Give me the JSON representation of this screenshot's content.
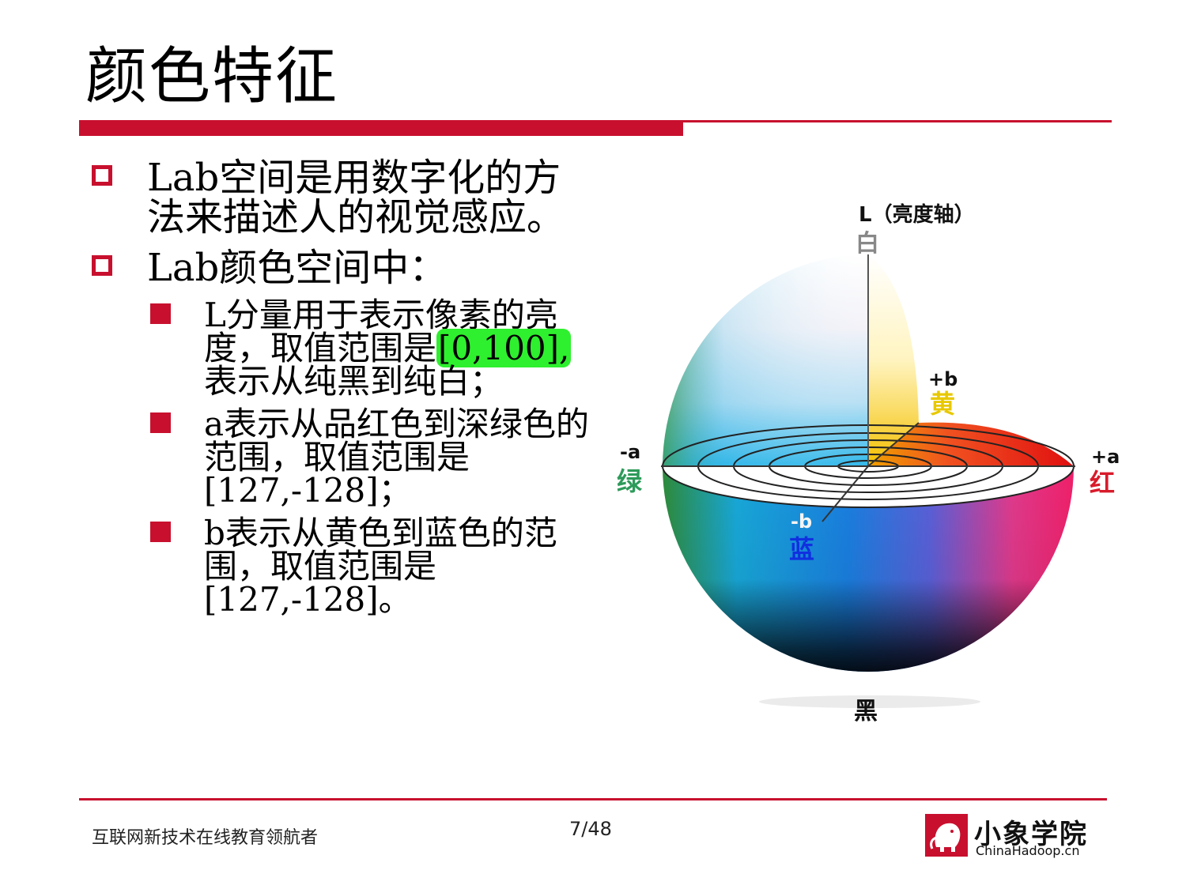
{
  "slide": {
    "title": "颜色特征",
    "bullets": [
      {
        "text": "Lab空间是用数字化的方法来描述人的视觉感应。"
      },
      {
        "text": "Lab颜色空间中："
      }
    ],
    "sub_bullets": [
      {
        "before": "L分量用于表示像素的亮度，取值范围是",
        "highlight": "[0,100],",
        "after": "表示从纯黑到纯白；"
      },
      {
        "text": "a表示从品红色到深绿色的范围，取值范围是[127,-128]；"
      },
      {
        "text": "b表示从黄色到蓝色的范围，取值范围是[127,-128]。"
      }
    ]
  },
  "diagram": {
    "axis_label": "L（亮度轴）",
    "white": "白",
    "black": "黑",
    "plus_b": "+b",
    "yellow": "黄",
    "minus_a": "-a",
    "green": "绿",
    "plus_a": "+a",
    "red": "红",
    "minus_b": "-b",
    "blue": "蓝"
  },
  "footer": {
    "slogan": "互联网新技术在线教育领航者",
    "page": "7/48",
    "logo_cn": "小象学院",
    "logo_en": "ChinaHadoop.cn"
  },
  "colors": {
    "accent": "#c8102e",
    "highlight": "#2ef02e",
    "yellow_label": "#e8c800",
    "green_label": "#2e9a5a",
    "red_label": "#d81b2b",
    "blue_label": "#1030e0"
  }
}
